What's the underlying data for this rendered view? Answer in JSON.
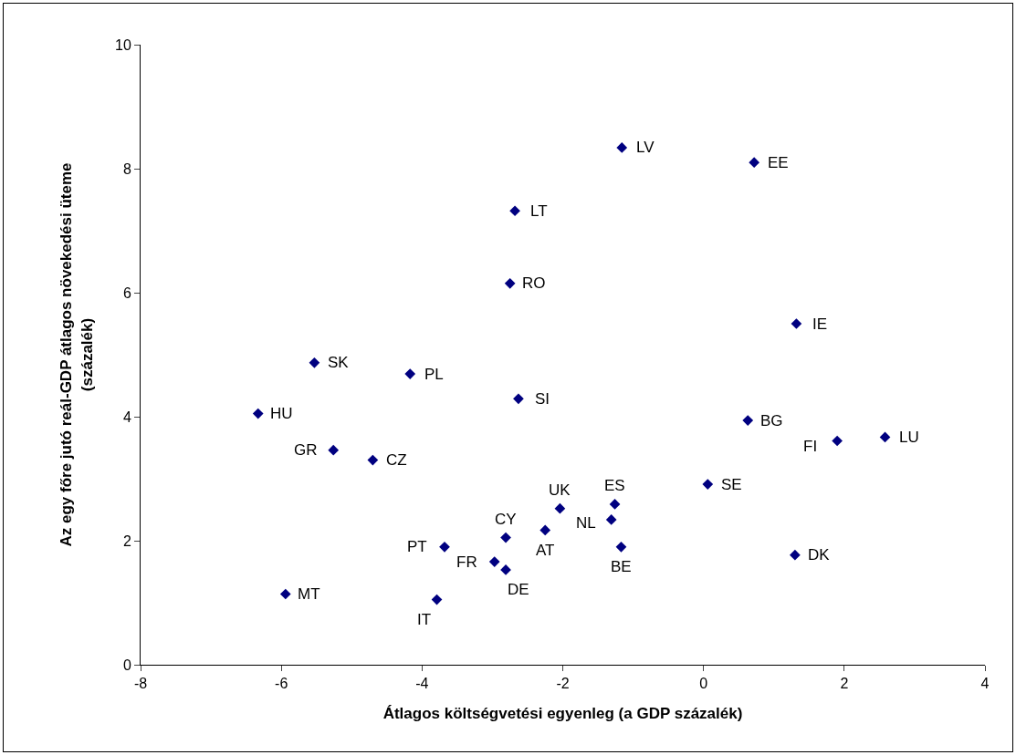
{
  "chart_data": {
    "type": "scatter",
    "xlabel": "Átlagos költségvetési egyenleg (a GDP százalék)",
    "ylabel": "Az egy főre jutó reál-GDP átlagos növekedési üteme\n(százalék)",
    "x": [
      -1.16,
      0.72,
      -2.68,
      -2.75,
      1.32,
      -5.53,
      -4.17,
      -2.63,
      -6.33,
      0.63,
      2.58,
      1.9,
      -5.26,
      -4.7,
      0.06,
      -1.26,
      -2.04,
      -1.31,
      -2.25,
      -2.81,
      -3.68,
      -1.17,
      1.3,
      -2.97,
      -2.81,
      -5.94,
      -3.79
    ],
    "values": [
      8.34,
      8.1,
      7.32,
      6.15,
      5.5,
      4.87,
      4.69,
      4.29,
      4.05,
      3.94,
      3.67,
      3.61,
      3.46,
      3.3,
      2.91,
      2.59,
      2.52,
      2.34,
      2.17,
      2.05,
      1.9,
      1.9,
      1.77,
      1.66,
      1.53,
      1.14,
      1.05
    ],
    "color": "#000080",
    "marker": "diamond",
    "xlim": [
      -8,
      4
    ],
    "xticks": [
      -8,
      -6,
      -4,
      -2,
      0,
      2,
      4
    ],
    "ylim": [
      0,
      10
    ],
    "yticks": [
      0,
      2,
      4,
      6,
      8,
      10
    ],
    "annotations": [
      {
        "text": "LV",
        "x": -1.16,
        "y": 8.34
      },
      {
        "text": "EE",
        "x": 0.72,
        "y": 8.1
      },
      {
        "text": "LT",
        "x": -2.68,
        "y": 7.32
      },
      {
        "text": "RO",
        "x": -2.75,
        "y": 6.15
      },
      {
        "text": "IE",
        "x": 1.32,
        "y": 5.5
      },
      {
        "text": "SK",
        "x": -5.53,
        "y": 4.87
      },
      {
        "text": "PL",
        "x": -4.17,
        "y": 4.69
      },
      {
        "text": "SI",
        "x": -2.63,
        "y": 4.29
      },
      {
        "text": "HU",
        "x": -6.33,
        "y": 4.05
      },
      {
        "text": "BG",
        "x": 0.63,
        "y": 3.94
      },
      {
        "text": "LU",
        "x": 2.58,
        "y": 3.67
      },
      {
        "text": "FI",
        "x": 1.9,
        "y": 3.61
      },
      {
        "text": "GR",
        "x": -5.26,
        "y": 3.46
      },
      {
        "text": "CZ",
        "x": -4.7,
        "y": 3.3
      },
      {
        "text": "SE",
        "x": 0.06,
        "y": 2.91
      },
      {
        "text": "ES",
        "x": -1.26,
        "y": 2.59
      },
      {
        "text": "UK",
        "x": -2.04,
        "y": 2.52
      },
      {
        "text": "NL",
        "x": -1.31,
        "y": 2.34
      },
      {
        "text": "AT",
        "x": -2.25,
        "y": 2.17
      },
      {
        "text": "CY",
        "x": -2.81,
        "y": 2.05
      },
      {
        "text": "PT",
        "x": -3.68,
        "y": 1.9
      },
      {
        "text": "BE",
        "x": -1.17,
        "y": 1.9
      },
      {
        "text": "DK",
        "x": 1.3,
        "y": 1.77
      },
      {
        "text": "FR",
        "x": -2.97,
        "y": 1.66
      },
      {
        "text": "DE",
        "x": -2.81,
        "y": 1.53
      },
      {
        "text": "MT",
        "x": -5.94,
        "y": 1.14
      },
      {
        "text": "IT",
        "x": -3.79,
        "y": 1.05
      }
    ]
  }
}
